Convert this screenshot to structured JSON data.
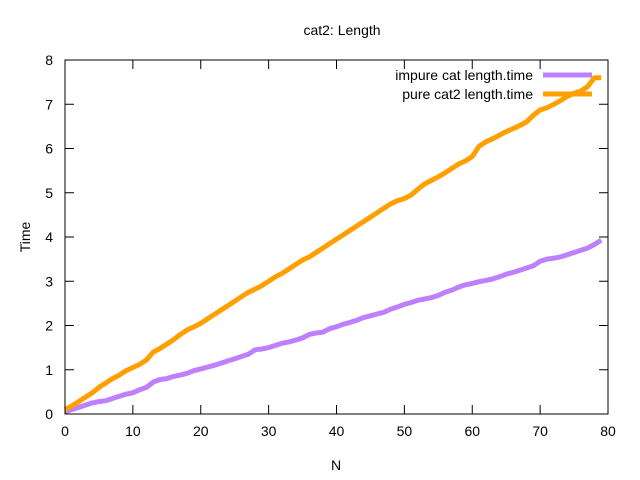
{
  "chart_data": {
    "type": "line",
    "title": "cat2: Length",
    "xlabel": "N",
    "ylabel": "Time",
    "xlim": [
      0,
      80
    ],
    "ylim": [
      0,
      8
    ],
    "xticks": [
      0,
      10,
      20,
      30,
      40,
      50,
      60,
      70,
      80
    ],
    "yticks": [
      0,
      1,
      2,
      3,
      4,
      5,
      6,
      7,
      8
    ],
    "grid": false,
    "legend_position": "top-right",
    "series": [
      {
        "name": "impure cat length.time",
        "color": "#bf80ff",
        "x": [
          0,
          1,
          2,
          3,
          4,
          5,
          6,
          7,
          8,
          9,
          10,
          11,
          12,
          13,
          14,
          15,
          16,
          17,
          18,
          19,
          20,
          21,
          22,
          23,
          24,
          25,
          26,
          27,
          28,
          29,
          30,
          31,
          32,
          33,
          34,
          35,
          36,
          37,
          38,
          39,
          40,
          41,
          42,
          43,
          44,
          45,
          46,
          47,
          48,
          49,
          50,
          51,
          52,
          53,
          54,
          55,
          56,
          57,
          58,
          59,
          60,
          61,
          62,
          63,
          64,
          65,
          66,
          67,
          68,
          69,
          70,
          71,
          72,
          73,
          74,
          75,
          76,
          77,
          78,
          79
        ],
        "values": [
          0.05,
          0.1,
          0.15,
          0.2,
          0.25,
          0.28,
          0.3,
          0.35,
          0.4,
          0.45,
          0.48,
          0.55,
          0.6,
          0.72,
          0.78,
          0.8,
          0.85,
          0.88,
          0.92,
          0.98,
          1.02,
          1.06,
          1.1,
          1.15,
          1.2,
          1.25,
          1.3,
          1.35,
          1.45,
          1.47,
          1.5,
          1.55,
          1.6,
          1.63,
          1.67,
          1.72,
          1.8,
          1.83,
          1.85,
          1.93,
          1.97,
          2.03,
          2.07,
          2.12,
          2.18,
          2.22,
          2.26,
          2.3,
          2.37,
          2.42,
          2.48,
          2.52,
          2.57,
          2.6,
          2.63,
          2.68,
          2.75,
          2.8,
          2.87,
          2.92,
          2.95,
          2.99,
          3.02,
          3.05,
          3.1,
          3.16,
          3.2,
          3.25,
          3.3,
          3.35,
          3.45,
          3.5,
          3.52,
          3.55,
          3.6,
          3.65,
          3.7,
          3.75,
          3.83,
          3.93
        ]
      },
      {
        "name": "pure cat2 length.time",
        "color": "#ffa000",
        "x": [
          0,
          1,
          2,
          3,
          4,
          5,
          6,
          7,
          8,
          9,
          10,
          11,
          12,
          13,
          14,
          15,
          16,
          17,
          18,
          19,
          20,
          21,
          22,
          23,
          24,
          25,
          26,
          27,
          28,
          29,
          30,
          31,
          32,
          33,
          34,
          35,
          36,
          37,
          38,
          39,
          40,
          41,
          42,
          43,
          44,
          45,
          46,
          47,
          48,
          49,
          50,
          51,
          52,
          53,
          54,
          55,
          56,
          57,
          58,
          59,
          60,
          61,
          62,
          63,
          64,
          65,
          66,
          67,
          68,
          69,
          70,
          71,
          72,
          73,
          74,
          75,
          76,
          77,
          78,
          79
        ],
        "values": [
          0.1,
          0.18,
          0.28,
          0.38,
          0.48,
          0.6,
          0.7,
          0.8,
          0.88,
          0.98,
          1.05,
          1.12,
          1.22,
          1.4,
          1.48,
          1.58,
          1.68,
          1.8,
          1.9,
          1.97,
          2.05,
          2.15,
          2.25,
          2.35,
          2.45,
          2.55,
          2.65,
          2.75,
          2.82,
          2.9,
          3.0,
          3.1,
          3.18,
          3.28,
          3.38,
          3.48,
          3.55,
          3.65,
          3.75,
          3.85,
          3.95,
          4.05,
          4.15,
          4.25,
          4.35,
          4.45,
          4.55,
          4.65,
          4.75,
          4.82,
          4.87,
          4.95,
          5.08,
          5.2,
          5.28,
          5.36,
          5.45,
          5.55,
          5.65,
          5.72,
          5.82,
          6.05,
          6.15,
          6.22,
          6.3,
          6.38,
          6.45,
          6.52,
          6.6,
          6.75,
          6.87,
          6.92,
          7.0,
          7.08,
          7.18,
          7.25,
          7.3,
          7.4,
          7.6,
          7.6
        ]
      }
    ]
  }
}
